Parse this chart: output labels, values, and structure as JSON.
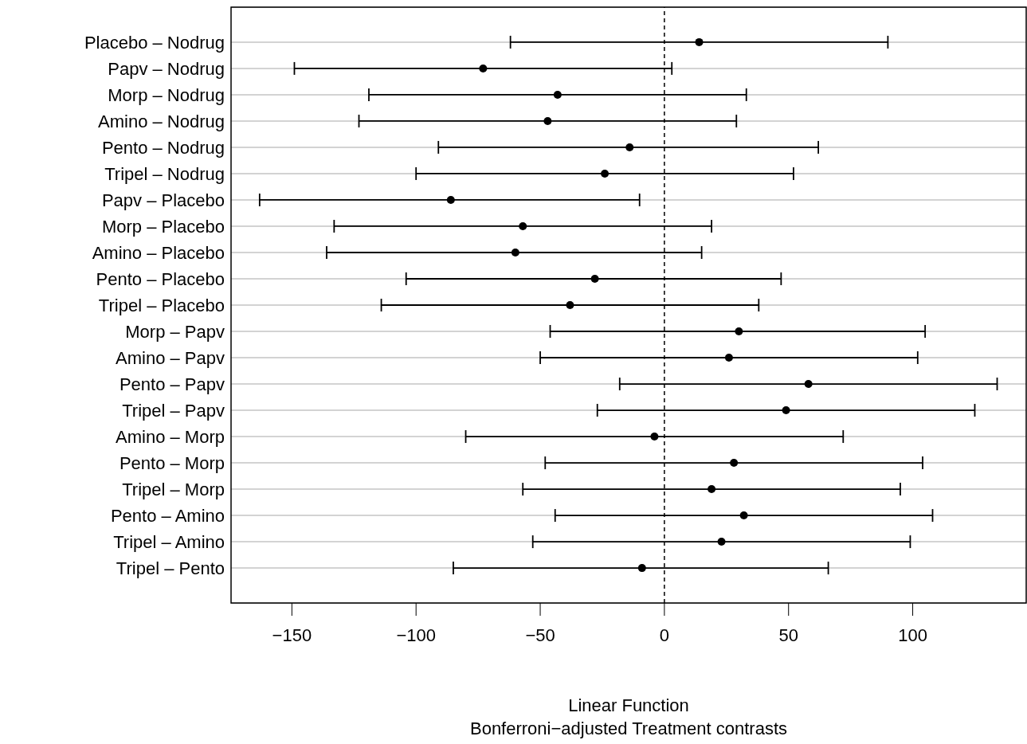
{
  "chart_data": {
    "type": "scatter",
    "orientation": "horizontal",
    "xlabel": "Linear Function",
    "subtitle": "Bonferroni−adjusted Treatment contrasts",
    "categories": [
      "Placebo – Nodrug",
      "Papv – Nodrug",
      "Morp – Nodrug",
      "Amino – Nodrug",
      "Pento – Nodrug",
      "Tripel – Nodrug",
      "Papv – Placebo",
      "Morp – Placebo",
      "Amino – Placebo",
      "Pento – Placebo",
      "Tripel – Placebo",
      "Morp – Papv",
      "Amino – Papv",
      "Pento – Papv",
      "Tripel – Papv",
      "Amino – Morp",
      "Pento – Morp",
      "Tripel – Morp",
      "Pento – Amino",
      "Tripel – Amino",
      "Tripel – Pento"
    ],
    "values": [
      14,
      -73,
      -43,
      -47,
      -14,
      -24,
      -86,
      -57,
      -60,
      -28,
      -38,
      30,
      26,
      58,
      49,
      -4,
      28,
      19,
      32,
      23,
      -9
    ],
    "errors": [
      [
        -62,
        90
      ],
      [
        -149,
        3
      ],
      [
        -119,
        33
      ],
      [
        -123,
        29
      ],
      [
        -91,
        62
      ],
      [
        -100,
        52
      ],
      [
        -163,
        -10
      ],
      [
        -133,
        19
      ],
      [
        -136,
        15
      ],
      [
        -104,
        47
      ],
      [
        -114,
        38
      ],
      [
        -46,
        105
      ],
      [
        -50,
        102
      ],
      [
        -18,
        134
      ],
      [
        -27,
        125
      ],
      [
        -80,
        72
      ],
      [
        -48,
        104
      ],
      [
        -57,
        95
      ],
      [
        -44,
        108
      ],
      [
        -53,
        99
      ],
      [
        -85,
        66
      ]
    ],
    "color": "#000000",
    "marker": "circle",
    "xlim": [
      -174.5,
      145.7
    ],
    "xticks": [
      -150,
      -100,
      -50,
      0,
      50,
      100
    ],
    "ref_lines": [
      {
        "axis": "x",
        "value": 0,
        "line_style": "dashed",
        "color": "#000000"
      }
    ],
    "grid": "y",
    "legend": false
  }
}
